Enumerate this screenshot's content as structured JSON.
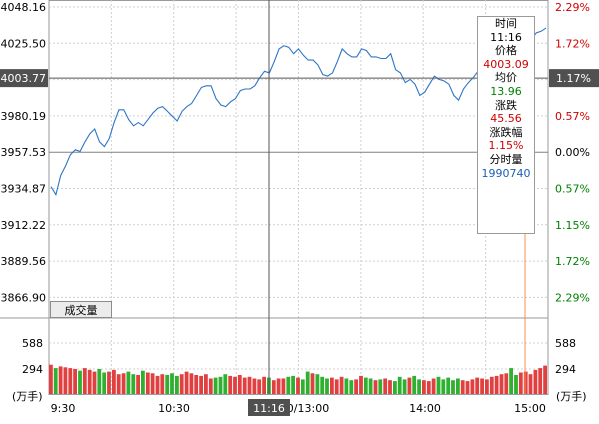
{
  "chart_data": {
    "type": "line",
    "title": "",
    "price_axis": {
      "labels": [
        "4048.16",
        "4025.50",
        "4003.77",
        "3980.19",
        "3957.53",
        "3934.87",
        "3912.22",
        "3889.56",
        "3866.90"
      ],
      "pct_labels": [
        "2.29%",
        "1.72%",
        "1.17%",
        "0.57%",
        "0.00%",
        "0.57%",
        "1.15%",
        "1.72%",
        "2.29%"
      ],
      "pct_colors": [
        "#d00000",
        "#d00000",
        "#ffffff",
        "#d00000",
        "#000000",
        "#008000",
        "#008000",
        "#008000",
        "#008000"
      ],
      "ylim": [
        3866.9,
        4048.16
      ],
      "prev_close": 3957.53
    },
    "volume_axis": {
      "labels": [
        "588",
        "294"
      ],
      "unit": "(万手)",
      "ylim": [
        0,
        882
      ]
    },
    "time_axis": {
      "labels": [
        "9:30",
        "10:30",
        "11:16",
        "0/13:00",
        "14:00",
        "15:00"
      ]
    },
    "crosshair": {
      "time": "11:16",
      "price": "4003.77",
      "pct": "1.17%"
    },
    "series": [
      {
        "values": [
          3936,
          3931,
          3943,
          3949,
          3956,
          3959,
          3958,
          3964,
          3969,
          3972,
          3964,
          3961,
          3966,
          3976,
          3984,
          3984,
          3978,
          3974,
          3976,
          3974,
          3978,
          3982,
          3985,
          3986,
          3983,
          3980,
          3977,
          3983,
          3986,
          3988,
          3993,
          3998,
          3999,
          3999,
          3991,
          3987,
          3986,
          3989,
          3991,
          3996,
          3997,
          3997,
          3999,
          4004,
          4008,
          4007,
          4014,
          4022,
          4024,
          4023,
          4019,
          4022,
          4018,
          4015,
          4015,
          4012,
          4006,
          4005,
          4007,
          4014,
          4022,
          4019,
          4017,
          4017,
          4022,
          4021,
          4017,
          4017,
          4016,
          4016,
          4019,
          4009,
          4007,
          4001,
          4003,
          4000,
          3993,
          3995,
          4000,
          4005,
          4003,
          4002,
          4000,
          3993,
          3990,
          3997,
          4001,
          4004,
          4008,
          4011,
          4012,
          4013,
          4014,
          4016,
          4020,
          4015,
          4013,
          4015,
          4021,
          4028,
          4032,
          4033,
          4035
        ]
      }
    ],
    "volume": [
      340,
      300,
      320,
      310,
      300,
      290,
      270,
      300,
      280,
      260,
      290,
      250,
      260,
      280,
      230,
      240,
      260,
      230,
      220,
      270,
      250,
      240,
      210,
      230,
      220,
      240,
      210,
      230,
      260,
      240,
      220,
      210,
      230,
      180,
      190,
      200,
      230,
      210,
      200,
      220,
      190,
      200,
      180,
      170,
      200,
      190,
      160,
      180,
      180,
      200,
      210,
      190,
      170,
      260,
      240,
      230,
      200,
      180,
      190,
      170,
      200,
      180,
      160,
      170,
      210,
      190,
      180,
      160,
      170,
      180,
      160,
      150,
      200,
      170,
      190,
      210,
      170,
      160,
      150,
      180,
      200,
      170,
      190,
      160,
      180,
      160,
      150,
      170,
      190,
      180,
      170,
      200,
      210,
      230,
      240,
      300,
      220,
      250,
      260,
      230,
      280,
      300,
      330
    ],
    "tooltip": {
      "labels": [
        "时间",
        "价格",
        "均价",
        "涨跌",
        "涨跌幅",
        "分时量"
      ],
      "values": [
        "11:16",
        "4003.09",
        "13.96",
        "45.56",
        "1.15%",
        "1990740"
      ],
      "value_colors": [
        "#000000",
        "#d00000",
        "#008000",
        "#d00000",
        "#d00000",
        "#1a5fb4"
      ]
    },
    "volume_button": "成交量"
  }
}
